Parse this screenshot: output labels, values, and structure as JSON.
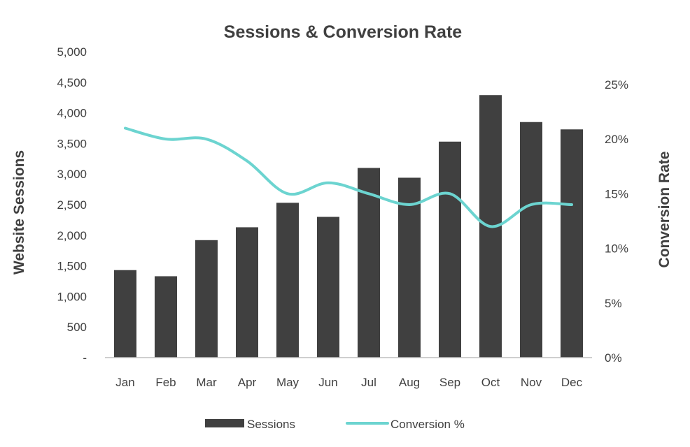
{
  "chart_data": {
    "type": "bar",
    "title": "Sessions & Conversion Rate",
    "categories": [
      "Jan",
      "Feb",
      "Mar",
      "Apr",
      "May",
      "Jun",
      "Jul",
      "Aug",
      "Sep",
      "Oct",
      "Nov",
      "Dec"
    ],
    "series": [
      {
        "name": "Sessions",
        "type": "bar",
        "axis": "left",
        "color": "#404040",
        "values": [
          1430,
          1330,
          1920,
          2130,
          2530,
          2300,
          3100,
          2940,
          3530,
          4290,
          3850,
          3730
        ]
      },
      {
        "name": "Conversion %",
        "type": "line",
        "axis": "right",
        "color": "#6cd4d0",
        "values": [
          21,
          20,
          20,
          18,
          15,
          16,
          15,
          14,
          15,
          12,
          14,
          14
        ]
      }
    ],
    "ylabel": "Website Sessions",
    "y2label": "Conversion Rate",
    "ylim": [
      0,
      5000
    ],
    "y2lim": [
      0,
      28
    ],
    "yticks": [
      "-",
      "500",
      "1,000",
      "1,500",
      "2,000",
      "2,500",
      "3,000",
      "3,500",
      "4,000",
      "4,500",
      "5,000"
    ],
    "y2ticks": [
      "0%",
      "5%",
      "10%",
      "15%",
      "20%",
      "25%"
    ],
    "grid": false,
    "legend": "bottom"
  }
}
